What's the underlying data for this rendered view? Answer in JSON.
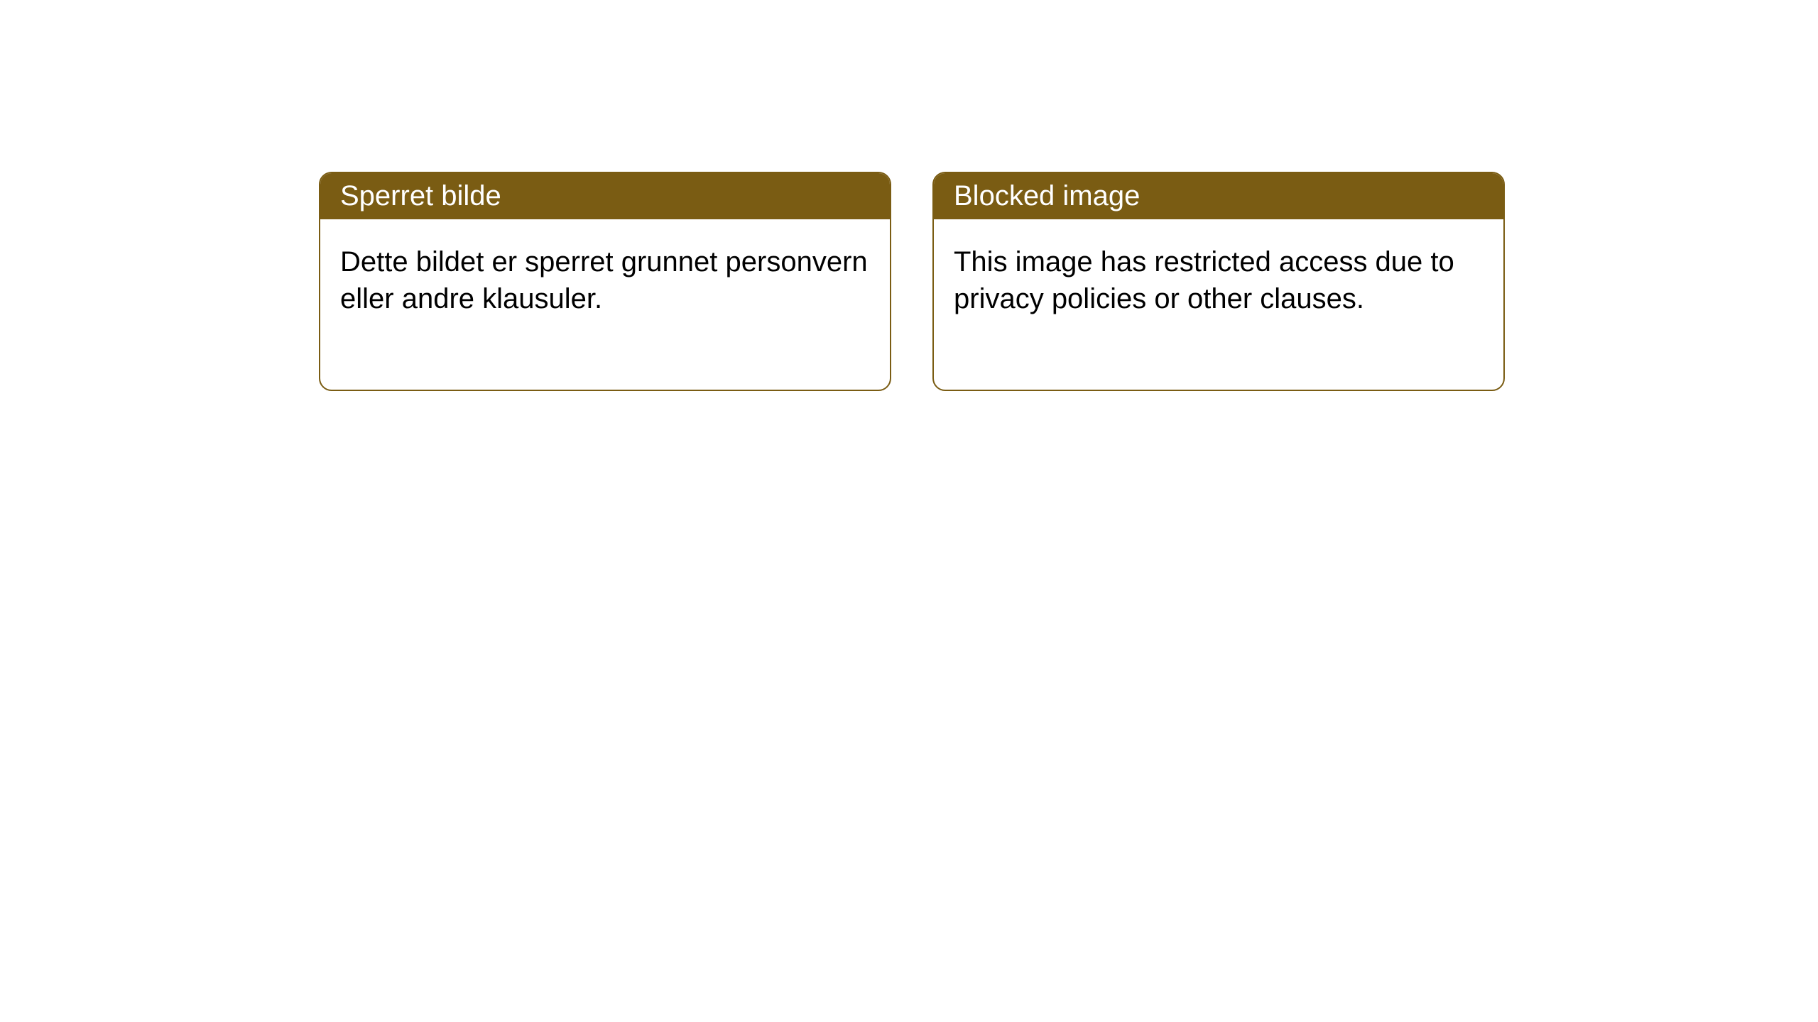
{
  "page": {
    "background_color": "#ffffff"
  },
  "notices": {
    "card_border_color": "#7a5c13",
    "card_border_radius": 18,
    "card_background": "#ffffff",
    "header_background": "#7a5c13",
    "header_text_color": "#ffffff",
    "header_font_size": 40,
    "body_text_color": "#000000",
    "body_font_size": 40,
    "left": {
      "title": "Sperret bilde",
      "body": "Dette bildet er sperret grunnet personvern eller andre klausuler."
    },
    "right": {
      "title": "Blocked image",
      "body": "This image has restricted access due to privacy policies or other clauses."
    }
  }
}
